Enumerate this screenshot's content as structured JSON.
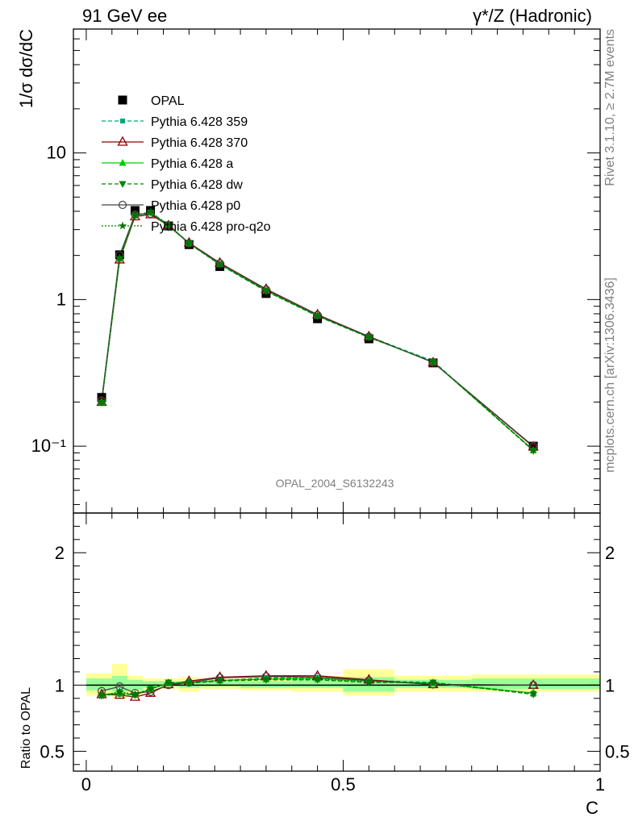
{
  "header": {
    "left_title": "91 GeV ee",
    "right_title": "γ*/Z (Hadronic)"
  },
  "side_notes": {
    "rivet": "Rivet 3.1.10, ≥ 2.7M events",
    "source": "mcplots.cern.ch [arXiv:1306.3436]"
  },
  "watermark": "OPAL_2004_S6132243",
  "colors": {
    "data": "#000000",
    "p359": "#00a878",
    "p370": "#8b0000",
    "pa": "#00cc00",
    "pdw": "#008800",
    "pp0": "#444444",
    "pq2o": "#007700",
    "band_outer": "#ffff99",
    "band_inner": "#99ff99"
  },
  "chart_data": [
    {
      "type": "line",
      "panel": "main",
      "ylabel": "1/σ dσ/dC",
      "yscale": "log",
      "ylim": [
        0.035,
        70
      ],
      "xlim": [
        -0.025,
        1.0
      ],
      "y_ticks": [
        {
          "value": 0.1,
          "label": "10⁻¹"
        },
        {
          "value": 1,
          "label": "1"
        },
        {
          "value": 10,
          "label": "10"
        }
      ],
      "legend_position": "top-left",
      "x": [
        0.03,
        0.065,
        0.095,
        0.125,
        0.16,
        0.2,
        0.26,
        0.35,
        0.45,
        0.55,
        0.675,
        0.87
      ],
      "series": [
        {
          "name": "OPAL",
          "key": "data",
          "marker": "square",
          "dash": "",
          "values": [
            0.215,
            2.02,
            4.05,
            4.05,
            3.18,
            2.37,
            1.68,
            1.1,
            0.74,
            0.54,
            0.37,
            0.1
          ]
        },
        {
          "name": "Pythia 6.428 359",
          "key": "p359",
          "marker": "square-small",
          "dash": "5,3",
          "values": [
            0.2,
            1.88,
            3.78,
            3.95,
            3.22,
            2.43,
            1.74,
            1.16,
            0.78,
            0.56,
            0.38,
            0.094
          ]
        },
        {
          "name": "Pythia 6.428 370",
          "key": "p370",
          "marker": "triangle-open",
          "dash": "",
          "values": [
            0.2,
            1.87,
            3.68,
            3.8,
            3.2,
            2.44,
            1.78,
            1.18,
            0.79,
            0.56,
            0.372,
            0.099
          ]
        },
        {
          "name": "Pythia 6.428 a",
          "key": "pa",
          "marker": "triangle-up",
          "dash": "",
          "values": [
            0.2,
            1.9,
            3.75,
            3.92,
            3.23,
            2.42,
            1.74,
            1.15,
            0.775,
            0.555,
            0.375,
            0.094
          ]
        },
        {
          "name": "Pythia 6.428 dw",
          "key": "pdw",
          "marker": "triangle-down",
          "dash": "5,3",
          "values": [
            0.198,
            1.89,
            3.74,
            3.93,
            3.24,
            2.41,
            1.73,
            1.14,
            0.77,
            0.552,
            0.377,
            0.093
          ]
        },
        {
          "name": "Pythia 6.428 p0",
          "key": "pp0",
          "marker": "circle-open",
          "dash": "",
          "values": [
            0.205,
            2.0,
            3.8,
            3.85,
            3.18,
            2.42,
            1.77,
            1.17,
            0.785,
            0.558,
            0.373,
            0.1
          ]
        },
        {
          "name": "Pythia 6.428 pro-q2o",
          "key": "pq2o",
          "marker": "star",
          "dash": "2,2",
          "values": [
            0.198,
            1.92,
            3.76,
            3.93,
            3.22,
            2.41,
            1.74,
            1.15,
            0.775,
            0.553,
            0.376,
            0.094
          ]
        }
      ]
    },
    {
      "type": "line",
      "panel": "ratio",
      "ylabel": "Ratio to OPAL",
      "xlabel": "C",
      "ylim": [
        0.35,
        2.3
      ],
      "xlim": [
        -0.025,
        1.0
      ],
      "y_ticks": [
        {
          "value": 0.5,
          "label": "0.5"
        },
        {
          "value": 1,
          "label": "1"
        },
        {
          "value": 2,
          "label": "2"
        }
      ],
      "x_ticks": [
        {
          "value": 0,
          "label": "0"
        },
        {
          "value": 0.5,
          "label": "0.5"
        },
        {
          "value": 1,
          "label": "1"
        }
      ],
      "bands": [
        {
          "x0": 0.0,
          "x1": 0.05,
          "outer": [
            0.92,
            1.09
          ],
          "inner": [
            0.96,
            1.05
          ]
        },
        {
          "x0": 0.05,
          "x1": 0.08,
          "outer": [
            0.9,
            1.16
          ],
          "inner": [
            0.95,
            1.07
          ]
        },
        {
          "x0": 0.08,
          "x1": 0.11,
          "outer": [
            0.92,
            1.07
          ],
          "inner": [
            0.96,
            1.04
          ]
        },
        {
          "x0": 0.11,
          "x1": 0.14,
          "outer": [
            0.96,
            1.05
          ],
          "inner": [
            0.98,
            1.03
          ]
        },
        {
          "x0": 0.14,
          "x1": 0.18,
          "outer": [
            0.97,
            1.05
          ],
          "inner": [
            0.99,
            1.03
          ]
        },
        {
          "x0": 0.18,
          "x1": 0.22,
          "outer": [
            0.95,
            1.06
          ],
          "inner": [
            0.98,
            1.03
          ]
        },
        {
          "x0": 0.22,
          "x1": 0.3,
          "outer": [
            0.97,
            1.05
          ],
          "inner": [
            0.99,
            1.03
          ]
        },
        {
          "x0": 0.3,
          "x1": 0.4,
          "outer": [
            0.96,
            1.06
          ],
          "inner": [
            0.98,
            1.03
          ]
        },
        {
          "x0": 0.4,
          "x1": 0.5,
          "outer": [
            0.95,
            1.07
          ],
          "inner": [
            0.98,
            1.04
          ]
        },
        {
          "x0": 0.5,
          "x1": 0.6,
          "outer": [
            0.92,
            1.12
          ],
          "inner": [
            0.95,
            1.06
          ]
        },
        {
          "x0": 0.6,
          "x1": 0.75,
          "outer": [
            0.95,
            1.07
          ],
          "inner": [
            0.98,
            1.04
          ]
        },
        {
          "x0": 0.75,
          "x1": 1.0,
          "outer": [
            0.95,
            1.08
          ],
          "inner": [
            0.97,
            1.05
          ]
        }
      ],
      "x": [
        0.03,
        0.065,
        0.095,
        0.125,
        0.16,
        0.2,
        0.26,
        0.35,
        0.45,
        0.55,
        0.675,
        0.87
      ],
      "series": [
        {
          "name": "Pythia 6.428 359",
          "key": "p359",
          "marker": "square-small",
          "dash": "5,3",
          "values": [
            0.93,
            0.93,
            0.93,
            0.975,
            1.01,
            1.025,
            1.035,
            1.055,
            1.055,
            1.035,
            1.02,
            0.94
          ]
        },
        {
          "name": "Pythia 6.428 370",
          "key": "p370",
          "marker": "triangle-open",
          "dash": "",
          "values": [
            0.93,
            0.925,
            0.91,
            0.94,
            1.005,
            1.03,
            1.06,
            1.07,
            1.07,
            1.04,
            1.005,
            1.0
          ]
        },
        {
          "name": "Pythia 6.428 a",
          "key": "pa",
          "marker": "triangle-up",
          "dash": "",
          "values": [
            0.93,
            0.94,
            0.925,
            0.97,
            1.015,
            1.02,
            1.035,
            1.045,
            1.05,
            1.03,
            1.015,
            0.94
          ]
        },
        {
          "name": "Pythia 6.428 dw",
          "key": "pdw",
          "marker": "triangle-down",
          "dash": "5,3",
          "values": [
            0.92,
            0.935,
            0.925,
            0.97,
            1.02,
            1.015,
            1.03,
            1.04,
            1.04,
            1.02,
            1.02,
            0.93
          ]
        },
        {
          "name": "Pythia 6.428 p0",
          "key": "pp0",
          "marker": "circle-open",
          "dash": "",
          "values": [
            0.955,
            0.99,
            0.94,
            0.95,
            1.0,
            1.02,
            1.055,
            1.065,
            1.06,
            1.035,
            1.005,
            1.0
          ]
        },
        {
          "name": "Pythia 6.428 pro-q2o",
          "key": "pq2o",
          "marker": "star",
          "dash": "2,2",
          "values": [
            0.92,
            0.95,
            0.93,
            0.97,
            1.015,
            1.015,
            1.035,
            1.045,
            1.045,
            1.025,
            1.015,
            0.935
          ]
        }
      ]
    }
  ]
}
